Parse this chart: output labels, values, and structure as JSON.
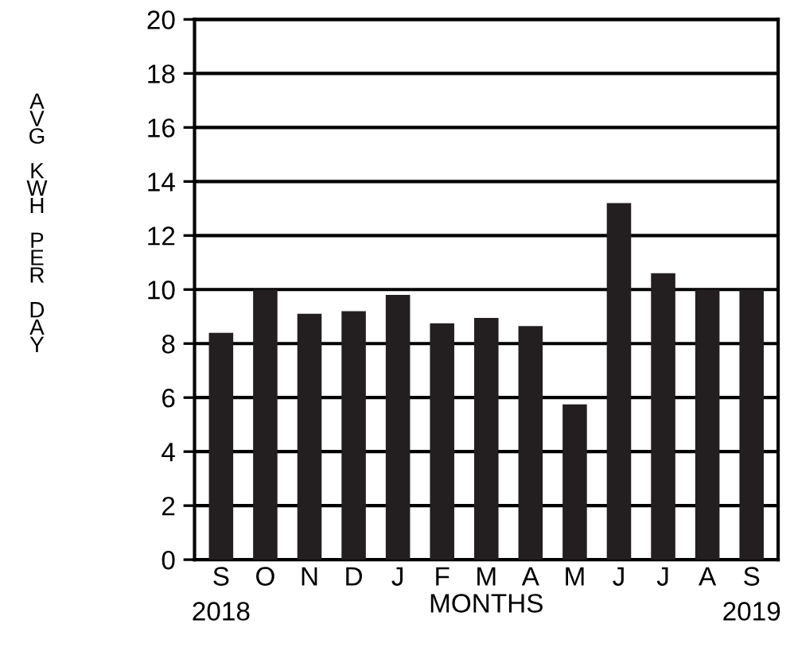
{
  "chart_data": {
    "type": "bar",
    "ylabel": "AVG KWH PER DAY",
    "xlabel": "MONTHS",
    "categories": [
      "S",
      "O",
      "N",
      "D",
      "J",
      "F",
      "M",
      "A",
      "M",
      "J",
      "J",
      "A",
      "S"
    ],
    "values": [
      8.4,
      10,
      9.1,
      9.2,
      9.8,
      8.75,
      8.95,
      8.65,
      5.75,
      13.2,
      10.6,
      10,
      10
    ],
    "color": "#231f20",
    "ylim": [
      0,
      20
    ],
    "yticks": [
      0,
      2,
      4,
      6,
      8,
      10,
      12,
      14,
      16,
      18,
      20
    ],
    "grid": "y",
    "annotations": [
      "2018",
      "2019"
    ]
  }
}
